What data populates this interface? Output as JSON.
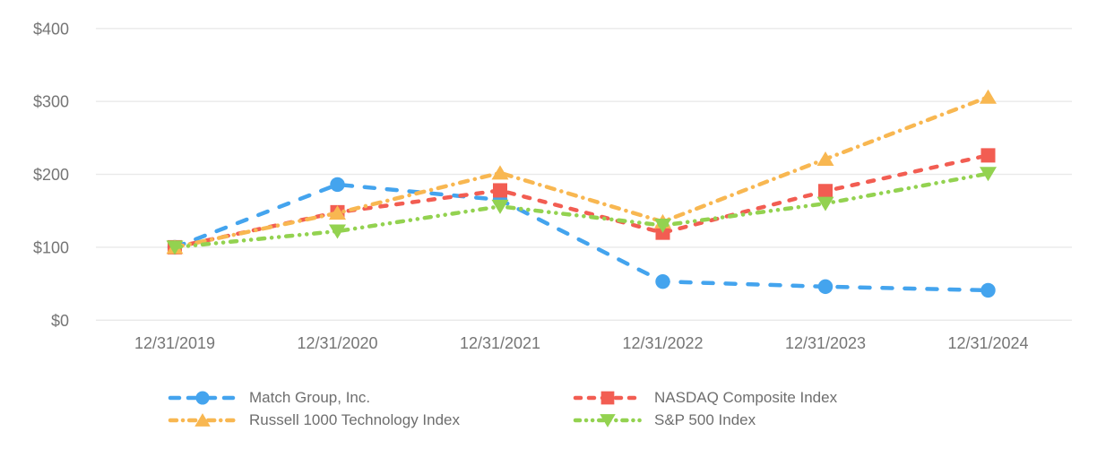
{
  "chart_data": {
    "type": "line",
    "title": "",
    "xlabel": "",
    "ylabel": "",
    "categories": [
      "12/31/2019",
      "12/31/2020",
      "12/31/2021",
      "12/31/2022",
      "12/31/2023",
      "12/31/2024"
    ],
    "y_ticks": [
      {
        "label": "$400",
        "value": 400
      },
      {
        "label": "$300",
        "value": 300
      },
      {
        "label": "$200",
        "value": 200
      },
      {
        "label": "$100",
        "value": 100
      },
      {
        "label": "$0",
        "value": 0
      }
    ],
    "ylim": [
      0,
      400
    ],
    "grid": "horizontal-only",
    "legend_position": "bottom-two-columns",
    "series": [
      {
        "name": "Match Group, Inc.",
        "color": "#44A4EE",
        "marker": "circle",
        "dash": "long-dash",
        "values": [
          100,
          186,
          165,
          53,
          46,
          41
        ]
      },
      {
        "name": "NASDAQ Composite Index",
        "color": "#F25D52",
        "marker": "square",
        "dash": "dash",
        "values": [
          100,
          148,
          178,
          120,
          177,
          226
        ]
      },
      {
        "name": "Russell 1000 Technology Index",
        "color": "#F8B751",
        "marker": "triangle-up",
        "dash": "dash-dot",
        "values": [
          100,
          147,
          202,
          135,
          221,
          306
        ]
      },
      {
        "name": "S&P 500 Index",
        "color": "#93D250",
        "marker": "triangle-down",
        "dash": "dash-dot-dot",
        "values": [
          100,
          122,
          156,
          130,
          160,
          201
        ]
      }
    ],
    "colors": {
      "axis_text": "#757575",
      "grid_line": "#E9E9E9",
      "legend_text": "#6E6E6E",
      "background": "#FFFFFF"
    }
  }
}
